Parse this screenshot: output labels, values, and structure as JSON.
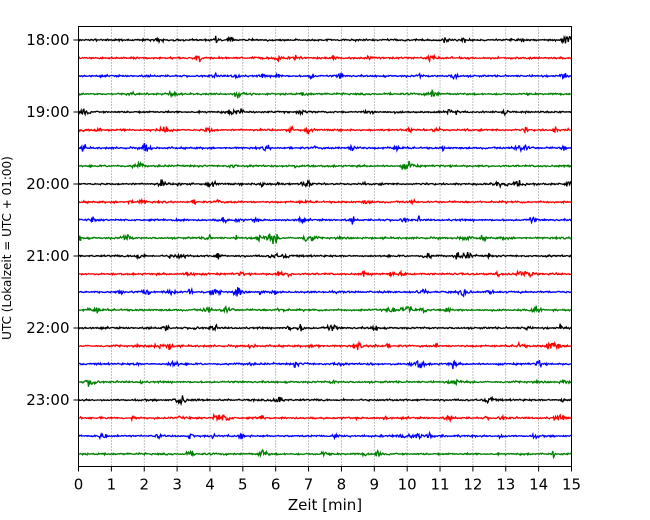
{
  "chart_data": {
    "type": "line",
    "title": "",
    "xlabel": "Zeit  [min]",
    "ylabel": "UTC (Lokalzeit = UTC + 01:00)",
    "xlim": [
      0,
      15
    ],
    "x_ticks": [
      0,
      1,
      2,
      3,
      4,
      5,
      6,
      7,
      8,
      9,
      10,
      11,
      12,
      13,
      14,
      15
    ],
    "x_tick_labels": [
      "0",
      "1",
      "2",
      "3",
      "4",
      "5",
      "6",
      "7",
      "8",
      "9",
      "10",
      "11",
      "12",
      "13",
      "14",
      "15"
    ],
    "x_grid": true,
    "grid_style": "dotted",
    "y_tick_labels": [
      "18:00",
      "19:00",
      "20:00",
      "21:00",
      "22:00",
      "23:00"
    ],
    "y_tick_rows": [
      0,
      4,
      8,
      12,
      16,
      20
    ],
    "rows": [
      "18:00",
      "18:15",
      "18:30",
      "18:45",
      "19:00",
      "19:15",
      "19:30",
      "19:45",
      "20:00",
      "20:15",
      "20:30",
      "20:45",
      "21:00",
      "21:15",
      "21:30",
      "21:45",
      "22:00",
      "22:15",
      "22:30",
      "22:45",
      "23:00",
      "23:15",
      "23:30",
      "23:45"
    ],
    "row_colors": [
      "#000000",
      "#ff0000",
      "#0000ff",
      "#008000"
    ]
  }
}
